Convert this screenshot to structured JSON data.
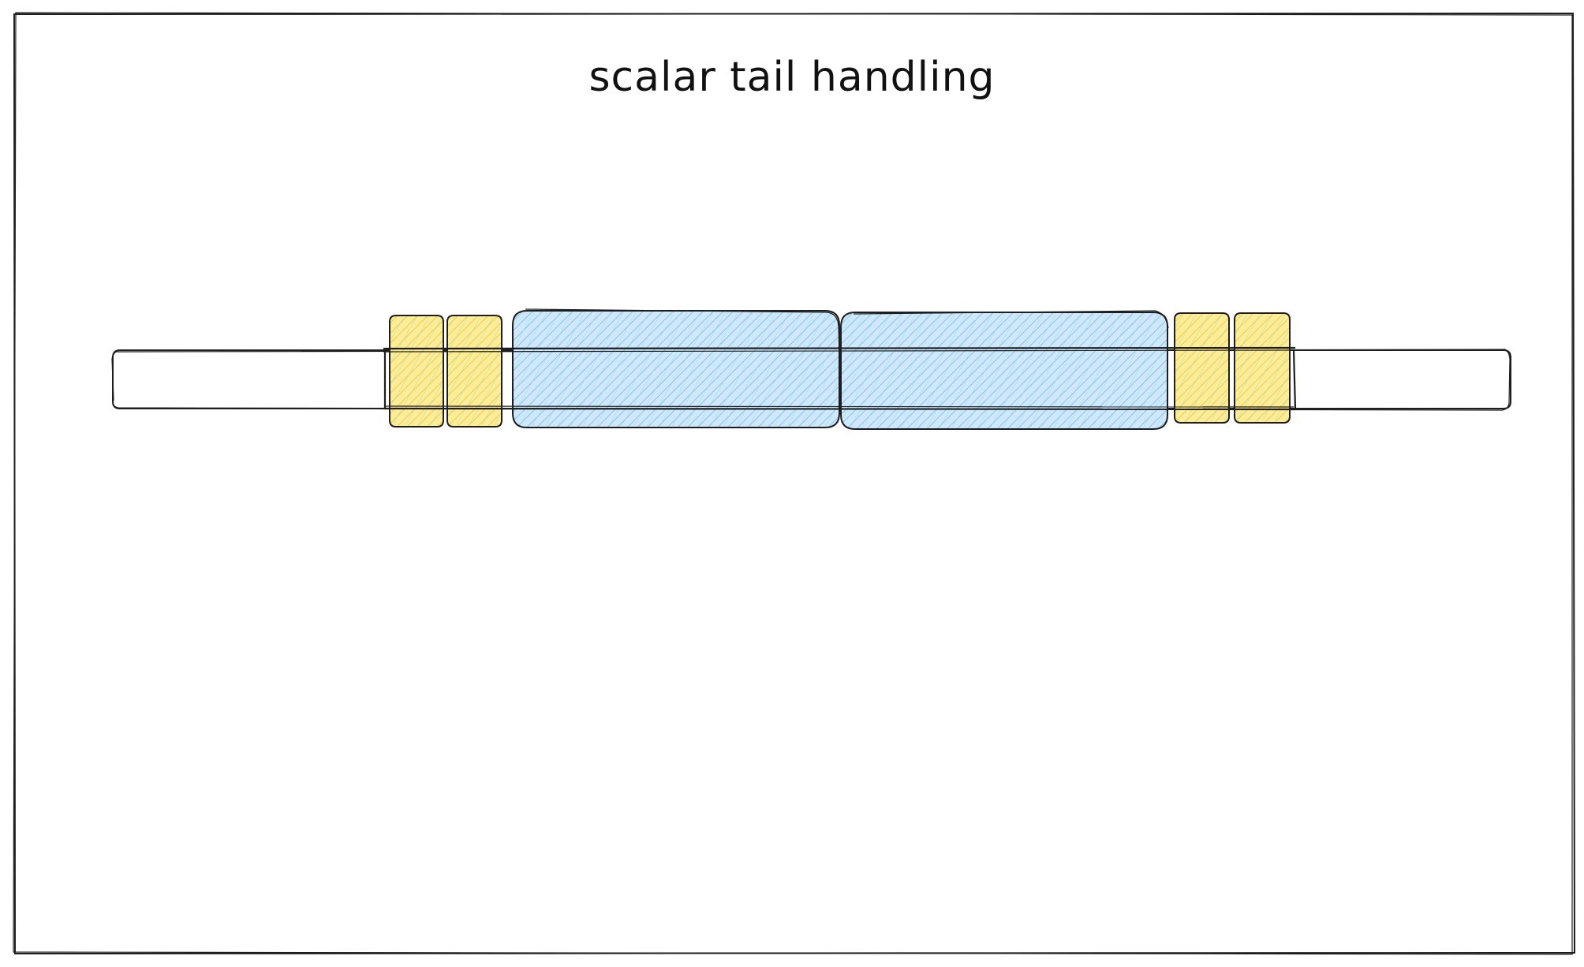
{
  "title": "scalar tail handling",
  "colors": {
    "stroke": "#1e1e1e",
    "background": "#ffffff",
    "scalar_fill": "#ffec99",
    "scalar_hatch": "#e6cf4a",
    "scalar_hatch_green": "#b2f2bb",
    "vector_fill": "#a5d8ff",
    "vector_hatch": "#74b9e8",
    "vector_hatch_green": "#b2f2bb"
  },
  "diagram": {
    "array_label": "",
    "blocks": [
      {
        "kind": "scalar",
        "name": "head-scalar-1",
        "icon": "scalar-block"
      },
      {
        "kind": "scalar",
        "name": "head-scalar-2",
        "icon": "scalar-block"
      },
      {
        "kind": "vector",
        "name": "vector-chunk-1",
        "icon": "vector-block"
      },
      {
        "kind": "vector",
        "name": "vector-chunk-2",
        "icon": "vector-block"
      },
      {
        "kind": "scalar",
        "name": "tail-scalar-1",
        "icon": "scalar-block"
      },
      {
        "kind": "scalar",
        "name": "tail-scalar-2",
        "icon": "scalar-block"
      }
    ]
  }
}
